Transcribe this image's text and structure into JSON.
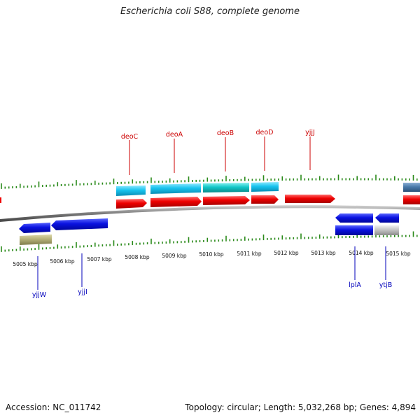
{
  "title": "Escherichia coli S88, complete genome",
  "footer": {
    "accession": "Accession: NC_011742",
    "summary": "Topology: circular; Length: 5,032,268 bp; Genes: 4,894"
  },
  "scale": {
    "unit": "kbp",
    "ticks": [
      "5005 kbp",
      "5006 kbp",
      "5007 kbp",
      "5008 kbp",
      "5009 kbp",
      "5010 kbp",
      "5011 kbp",
      "5012 kbp",
      "5013 kbp",
      "5014 kbp",
      "5015 kbp"
    ]
  },
  "colors": {
    "top_label": "#cc0000",
    "bottom_label": "#0000bb",
    "tick": "#2a8a1a",
    "backbone": "#8a8a8a",
    "cds_forward": "#ee0000",
    "cds_reverse": "#0a12e0",
    "gene_light_blue": "#18c4ee",
    "gene_teal": "#14c8c8",
    "gene_steel": "#4a7aaa",
    "gene_olive": "#b4b078",
    "gene_grey": "#c4c4c4"
  },
  "gene_labels_top": [
    "deoC",
    "deoA",
    "deoB",
    "deoD",
    "yjjJ"
  ],
  "gene_labels_bottom": [
    "yjjW",
    "yjjI",
    "lplA",
    "ytjB"
  ]
}
